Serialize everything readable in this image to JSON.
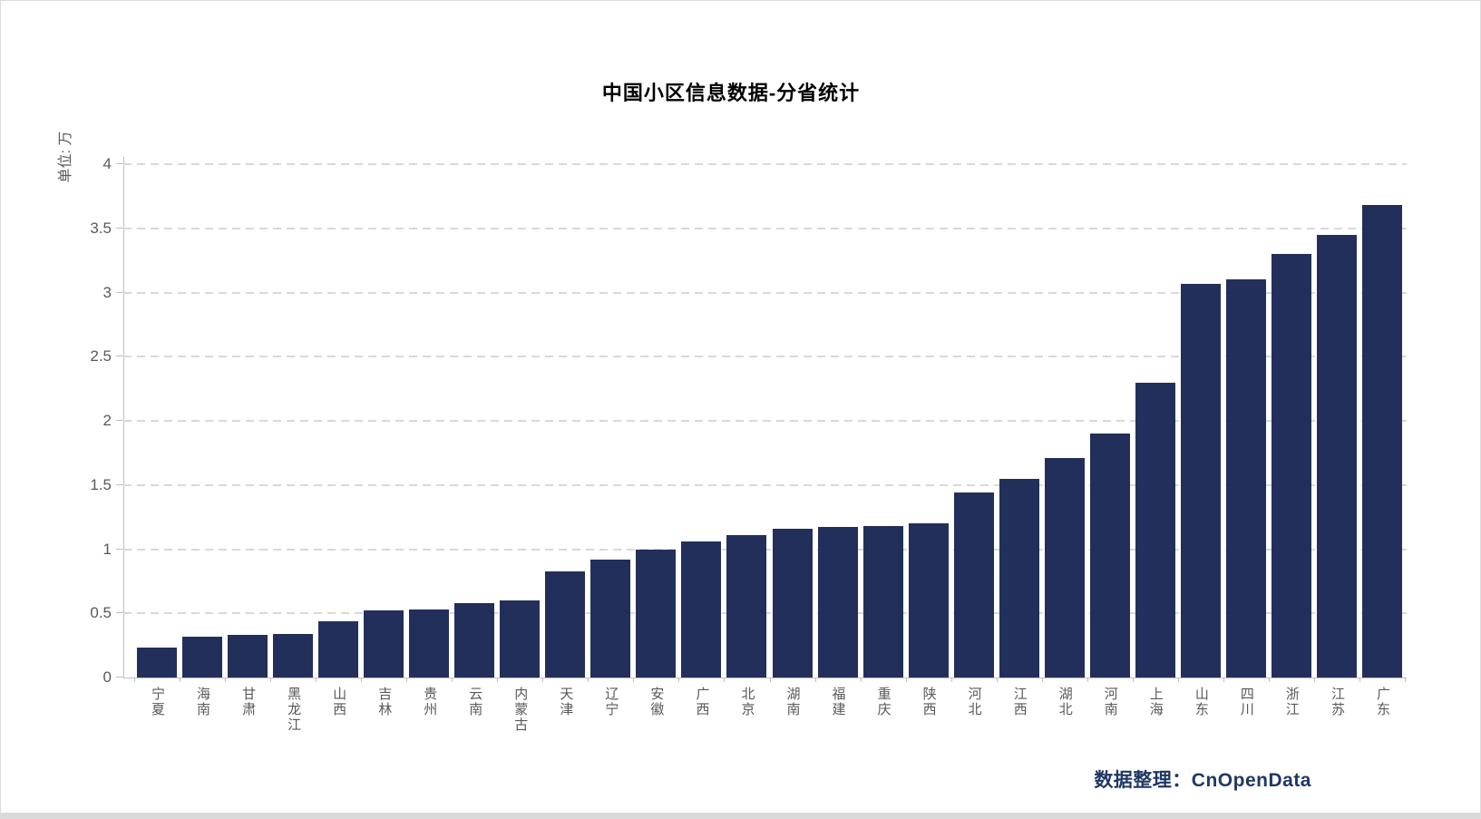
{
  "page": {
    "title": "中国小区信息数据-分省统计",
    "unit_label": "单位: 万",
    "source_note": "数据整理：CnOpenData"
  },
  "colors": {
    "bar": "#232f5b",
    "gridline": "#d9d9d9",
    "axis": "#bfbfbf",
    "tick_text": "#595959",
    "title_text": "#000000",
    "source_text": "#203864"
  },
  "chart_data": {
    "type": "bar",
    "title": "中国小区信息数据-分省统计",
    "xlabel": "",
    "ylabel": "单位: 万",
    "ylim": [
      0,
      4
    ],
    "y_ticks": [
      0,
      0.5,
      1,
      1.5,
      2,
      2.5,
      3,
      3.5,
      4
    ],
    "grid": "horizontal dashed",
    "legend": "none",
    "categories": [
      "宁夏",
      "海南",
      "甘肃",
      "黑龙江",
      "山西",
      "吉林",
      "贵州",
      "云南",
      "内蒙古",
      "天津",
      "辽宁",
      "安徽",
      "广西",
      "北京",
      "湖南",
      "福建",
      "重庆",
      "陕西",
      "河北",
      "江西",
      "湖北",
      "河南",
      "上海",
      "山东",
      "四川",
      "浙江",
      "江苏",
      "广东"
    ],
    "values": [
      0.23,
      0.32,
      0.33,
      0.34,
      0.44,
      0.52,
      0.53,
      0.58,
      0.6,
      0.83,
      0.92,
      1.0,
      1.06,
      1.11,
      1.16,
      1.17,
      1.18,
      1.2,
      1.44,
      1.55,
      1.71,
      1.9,
      2.3,
      3.07,
      3.1,
      3.3,
      3.45,
      3.68
    ],
    "source_note": "数据整理：CnOpenData"
  }
}
